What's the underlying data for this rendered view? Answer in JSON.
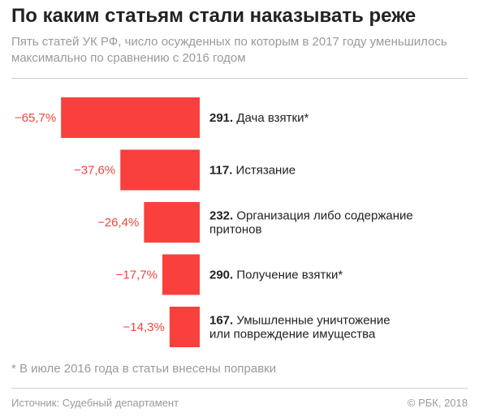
{
  "chart_data": {
    "type": "bar",
    "title": "По каким статьям стали наказывать реже",
    "subtitle": "Пять статей УК РФ, число осужденных по которым в 2017 году уменьшилось максимально по сравнению с 2016 годом",
    "categories": [
      {
        "number": "291.",
        "name": [
          "Дача взятки*"
        ]
      },
      {
        "number": "117.",
        "name": [
          "Истязание"
        ]
      },
      {
        "number": "232.",
        "name": [
          "Организация либо содержание",
          "притонов"
        ]
      },
      {
        "number": "290.",
        "name": [
          "Получение взятки*"
        ]
      },
      {
        "number": "167.",
        "name": [
          "Умышленные уничтожение",
          "или повреждение имущества"
        ]
      }
    ],
    "values": [
      -65.7,
      -37.6,
      -26.4,
      -17.7,
      -14.3
    ],
    "value_labels": [
      "−65,7%",
      "−37,6%",
      "−26,4%",
      "−17,7%",
      "−14,3%"
    ],
    "unit": "%",
    "bar_color": "#f9403c"
  },
  "footnote": "* В июле 2016 года в статьи внесены поправки",
  "source": "Источник: Судебный департамент",
  "copyright": "© РБК, 2018"
}
